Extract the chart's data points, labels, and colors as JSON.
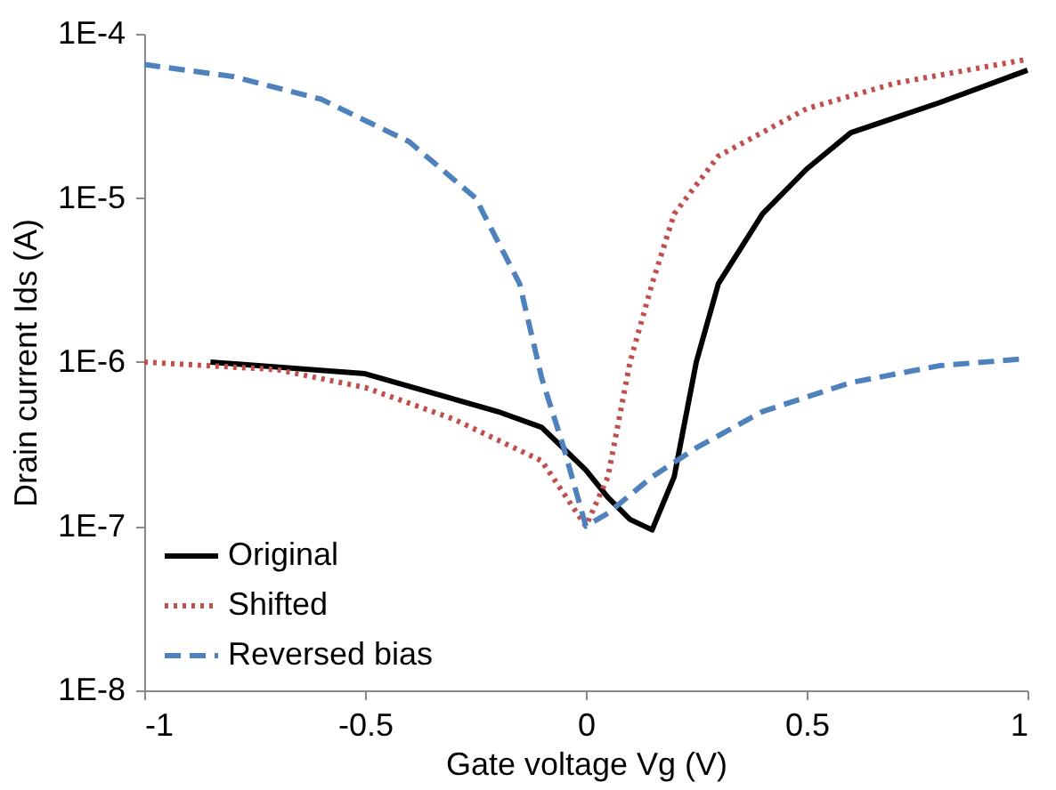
{
  "chart_data": {
    "type": "line",
    "xlabel": "Gate voltage Vg (V)",
    "ylabel": "Drain current Ids (A)",
    "log": "y",
    "xlim": [
      -1,
      1
    ],
    "xticks": [
      -1,
      -0.5,
      0,
      0.5,
      1
    ],
    "ylim": [
      1e-08,
      0.0001
    ],
    "yticks": [
      {
        "value": 1e-08,
        "label": "1E-8"
      },
      {
        "value": 1e-07,
        "label": "1E-7"
      },
      {
        "value": 1e-06,
        "label": "1E-6"
      },
      {
        "value": 1e-05,
        "label": "1E-5"
      },
      {
        "value": 0.0001,
        "label": "1E-4"
      }
    ],
    "grid": false,
    "legend": "bottom left",
    "marker": "none",
    "series": [
      {
        "name": "Original",
        "color": "#000000",
        "line_style": "solid",
        "x": [
          -0.85,
          -0.5,
          -0.2,
          -0.1,
          0,
          0.05,
          0.1,
          0.15,
          0.2,
          0.25,
          0.3,
          0.4,
          0.5,
          0.6,
          0.8,
          1.0
        ],
        "values": [
          1e-06,
          8.5e-07,
          5e-07,
          4e-07,
          2.2e-07,
          1.5e-07,
          1.1e-07,
          9.5e-08,
          2e-07,
          1e-06,
          3e-06,
          8e-06,
          1.5e-05,
          2.5e-05,
          3.8e-05,
          6e-05
        ]
      },
      {
        "name": "Shifted",
        "color": "#c0504d",
        "line_style": "dotted",
        "x": [
          -1,
          -0.7,
          -0.5,
          -0.3,
          -0.1,
          0,
          0.05,
          0.1,
          0.15,
          0.2,
          0.3,
          0.5,
          0.7,
          1.0
        ],
        "values": [
          1e-06,
          9e-07,
          7e-07,
          4.5e-07,
          2.5e-07,
          1e-07,
          2e-07,
          1e-06,
          3e-06,
          8e-06,
          1.8e-05,
          3.5e-05,
          5e-05,
          7e-05
        ]
      },
      {
        "name": "Reversed bias",
        "color": "#4f81bd",
        "line_style": "dashed",
        "x": [
          -1,
          -0.8,
          -0.6,
          -0.4,
          -0.25,
          -0.15,
          -0.1,
          -0.05,
          0,
          0.05,
          0.15,
          0.25,
          0.4,
          0.6,
          0.8,
          1.0
        ],
        "values": [
          6.5e-05,
          5.5e-05,
          4e-05,
          2.2e-05,
          1e-05,
          3e-06,
          8e-07,
          3e-07,
          1e-07,
          1.2e-07,
          2e-07,
          3e-07,
          5e-07,
          7.5e-07,
          9.5e-07,
          1.05e-06
        ]
      }
    ]
  }
}
